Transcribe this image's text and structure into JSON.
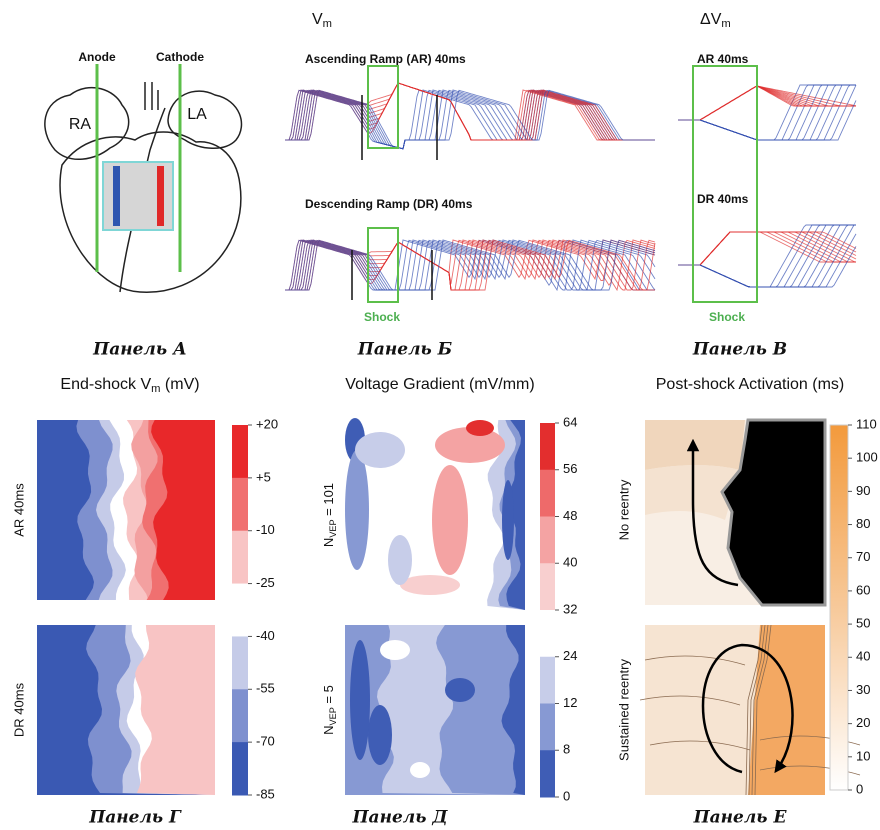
{
  "panel_a": {
    "label": "Панель А",
    "anode": "Anode",
    "cathode": "Cathode",
    "ra": "RA",
    "la": "LA"
  },
  "panel_b": {
    "label": "Панель Б",
    "heading": {
      "main": "V",
      "sub": "m"
    },
    "top_title": "Ascending Ramp (AR) 40ms",
    "bottom_title": "Descending Ramp (DR) 40ms",
    "shock": "Shock"
  },
  "panel_c": {
    "label": "Панель В",
    "heading": {
      "main": "ΔV",
      "sub": "m"
    },
    "top_title": "AR 40ms",
    "bottom_title": "DR 40ms",
    "shock": "Shock"
  },
  "panel_d": {
    "label": "Панель Г",
    "title": {
      "before": "End-shock V",
      "sub": "m",
      "after": " (mV)"
    },
    "rows": [
      "AR 40ms",
      "DR 40ms"
    ],
    "scale": [
      "+20",
      "+5",
      "-10",
      "-25",
      "-40",
      "-55",
      "-70",
      "-85"
    ]
  },
  "panel_e": {
    "label": "Панель Д",
    "title": "Voltage Gradient (mV/mm)",
    "rows": [
      {
        "before": "N",
        "sub": "VEP",
        "after": " = 101"
      },
      {
        "before": "N",
        "sub": "VEP",
        "after": " = 5"
      }
    ],
    "scale": [
      64,
      56,
      48,
      40,
      32,
      24,
      12,
      8,
      0
    ]
  },
  "panel_f": {
    "label": "Панель Е",
    "title": "Post-shock Activation (ms)",
    "rows": [
      "No reentry",
      "Sustained reentry"
    ],
    "scale": [
      110,
      100,
      90,
      80,
      70,
      60,
      50,
      40,
      30,
      20,
      10,
      0
    ]
  }
}
